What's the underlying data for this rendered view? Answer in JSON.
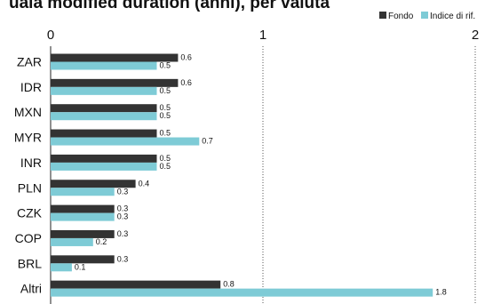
{
  "chart_data": {
    "type": "bar",
    "orientation": "horizontal",
    "title": "uala modified duration (anni), per valuta",
    "categories": [
      "ZAR",
      "IDR",
      "MXN",
      "MYR",
      "INR",
      "PLN",
      "CZK",
      "COP",
      "BRL",
      "Altri"
    ],
    "series": [
      {
        "name": "Fondo",
        "color": "#333333",
        "values": [
          0.6,
          0.6,
          0.5,
          0.5,
          0.5,
          0.4,
          0.3,
          0.3,
          0.3,
          0.8
        ]
      },
      {
        "name": "Indice di rif.",
        "color": "#7ecbd6",
        "values": [
          0.5,
          0.5,
          0.5,
          0.7,
          0.5,
          0.3,
          0.3,
          0.2,
          0.1,
          1.8
        ]
      }
    ],
    "x_ticks": [
      "0",
      "1",
      "2"
    ],
    "xlim": [
      0,
      2
    ],
    "grid": "dotted vertical lines at 1 and 2",
    "legend_position": "top-right",
    "xlabel": "",
    "ylabel": ""
  }
}
